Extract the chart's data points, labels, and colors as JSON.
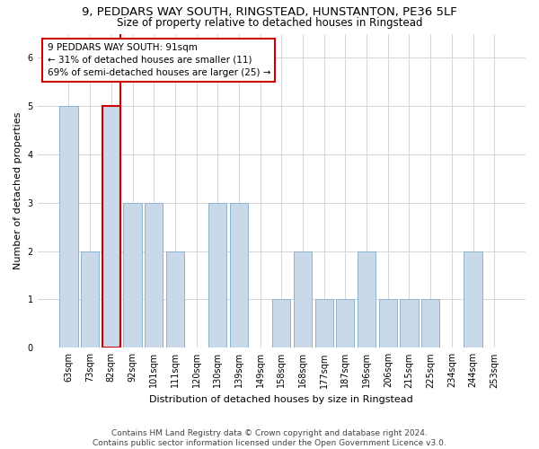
{
  "title_line1": "9, PEDDARS WAY SOUTH, RINGSTEAD, HUNSTANTON, PE36 5LF",
  "title_line2": "Size of property relative to detached houses in Ringstead",
  "xlabel": "Distribution of detached houses by size in Ringstead",
  "ylabel": "Number of detached properties",
  "footnote": "Contains HM Land Registry data © Crown copyright and database right 2024.\nContains public sector information licensed under the Open Government Licence v3.0.",
  "categories": [
    "63sqm",
    "73sqm",
    "82sqm",
    "92sqm",
    "101sqm",
    "111sqm",
    "120sqm",
    "130sqm",
    "139sqm",
    "149sqm",
    "158sqm",
    "168sqm",
    "177sqm",
    "187sqm",
    "196sqm",
    "206sqm",
    "215sqm",
    "225sqm",
    "234sqm",
    "244sqm",
    "253sqm"
  ],
  "values": [
    5,
    2,
    5,
    3,
    3,
    2,
    0,
    3,
    3,
    0,
    1,
    2,
    1,
    1,
    2,
    1,
    1,
    1,
    0,
    2,
    0
  ],
  "bar_color": "#c9d9ea",
  "bar_edge_color": "#8fb4d0",
  "highlight_bar_index": 2,
  "highlight_edge_color": "#cc0000",
  "vline_color": "#cc0000",
  "vline_x_index": 2,
  "annotation_box_text": "9 PEDDARS WAY SOUTH: 91sqm\n← 31% of detached houses are smaller (11)\n69% of semi-detached houses are larger (25) →",
  "ylim": [
    0,
    6.5
  ],
  "yticks": [
    0,
    1,
    2,
    3,
    4,
    5,
    6
  ],
  "background_color": "#ffffff",
  "grid_color": "#d0d0d0",
  "title_fontsize": 9.5,
  "subtitle_fontsize": 8.5,
  "annotation_fontsize": 7.5,
  "axis_label_fontsize": 8,
  "tick_fontsize": 7,
  "footnote_fontsize": 6.5
}
